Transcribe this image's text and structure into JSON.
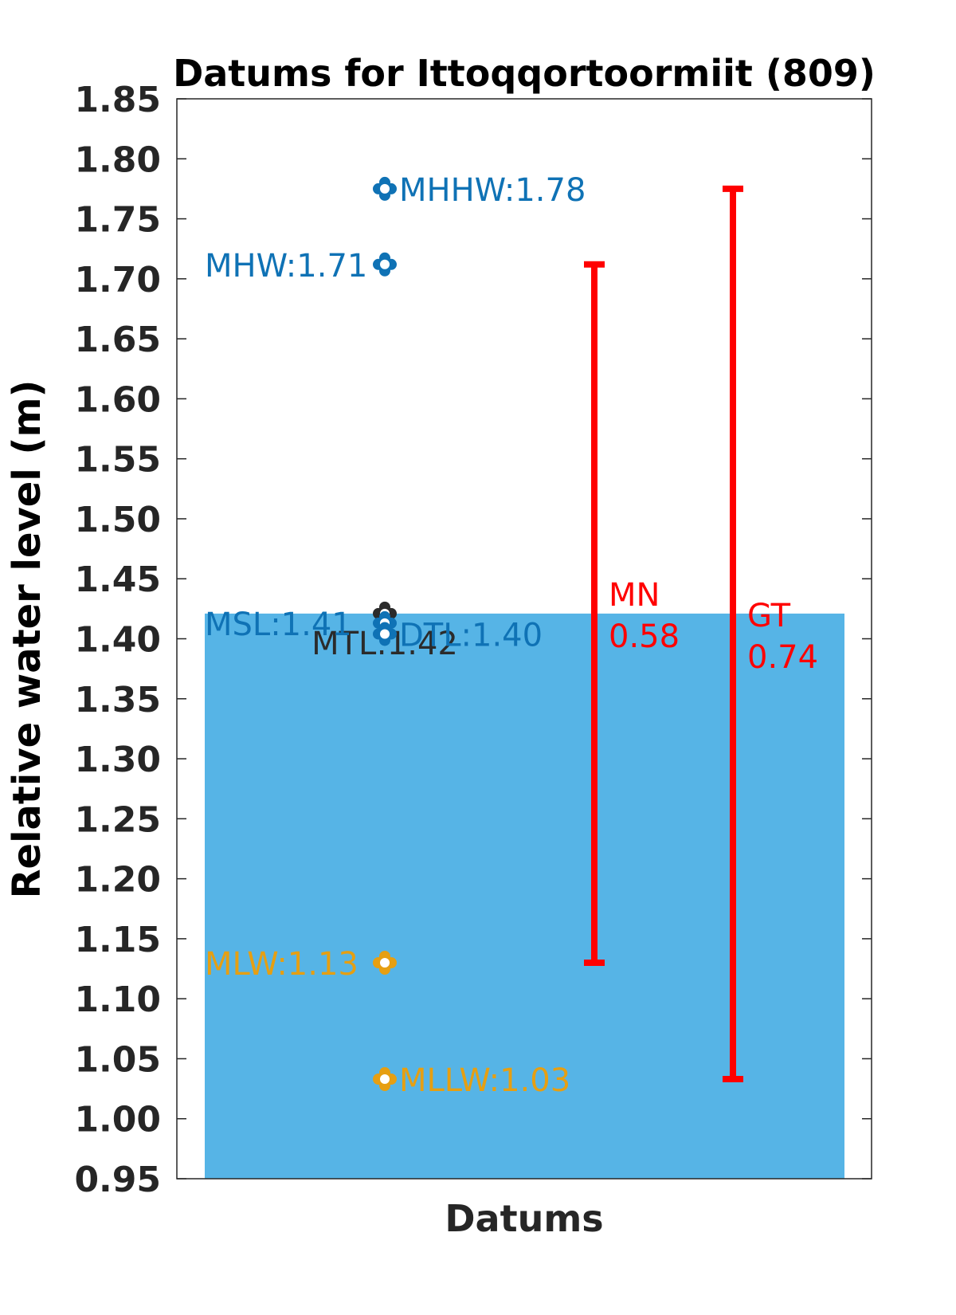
{
  "chart_data": {
    "type": "scatter",
    "title": "Datums for Ittoqqortoormiit (809)",
    "xlabel": "Datums",
    "ylabel": "Relative water level (m)",
    "ylim": [
      0.95,
      1.85
    ],
    "yticks": [
      "1.85",
      "1.80",
      "1.75",
      "1.70",
      "1.65",
      "1.60",
      "1.55",
      "1.50",
      "1.45",
      "1.40",
      "1.35",
      "1.30",
      "1.25",
      "1.20",
      "1.15",
      "1.10",
      "1.05",
      "1.00",
      "0.95"
    ],
    "grid": false,
    "background_bar": {
      "value": 1.421,
      "color": "#56b4e6"
    },
    "datums": [
      {
        "key": "mhhw",
        "label": "MHHW:1.78",
        "value": 1.775,
        "color": "#0f72b5",
        "label_side": "right"
      },
      {
        "key": "mhw",
        "label": "MHW:1.71",
        "value": 1.712,
        "color": "#0f72b5",
        "label_side": "left"
      },
      {
        "key": "mtl",
        "label": "MTL:1.42",
        "value": 1.421,
        "color": "#2b2b2b",
        "label_side": "below"
      },
      {
        "key": "msl",
        "label": "MSL:1.41",
        "value": 1.413,
        "color": "#0f72b5",
        "label_side": "left"
      },
      {
        "key": "dtl",
        "label": "DTL:1.40",
        "value": 1.404,
        "color": "#0f72b5",
        "label_side": "right"
      },
      {
        "key": "mlw",
        "label": "MLW:1.13",
        "value": 1.13,
        "color": "#e69f12",
        "label_side": "left"
      },
      {
        "key": "mllw",
        "label": "MLLW:1.03",
        "value": 1.033,
        "color": "#e69f12",
        "label_side": "right"
      }
    ],
    "ranges": [
      {
        "key": "mn",
        "name": "MN",
        "value_label": "0.58",
        "low": 1.13,
        "high": 1.712,
        "color": "#ff0000"
      },
      {
        "key": "gt",
        "name": "GT",
        "value_label": "0.74",
        "low": 1.033,
        "high": 1.775,
        "color": "#ff0000"
      }
    ]
  }
}
